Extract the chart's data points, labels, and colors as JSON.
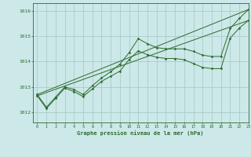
{
  "title": "Graphe pression niveau de la mer (hPa)",
  "bg_color": "#cce8e8",
  "grid_color": "#aacccc",
  "line_color": "#2d6a2d",
  "marker_color": "#2d6a2d",
  "xlim": [
    -0.5,
    23
  ],
  "ylim": [
    1011.6,
    1016.3
  ],
  "yticks": [
    1012,
    1013,
    1014,
    1015,
    1016
  ],
  "xticks": [
    0,
    1,
    2,
    3,
    4,
    5,
    6,
    7,
    8,
    9,
    10,
    11,
    12,
    13,
    14,
    15,
    16,
    17,
    18,
    19,
    20,
    21,
    22,
    23
  ],
  "series1": {
    "x": [
      0,
      1,
      2,
      3,
      4,
      5,
      6,
      7,
      8,
      9,
      10,
      11,
      12,
      13,
      14,
      15,
      16,
      17,
      18,
      19,
      20,
      21,
      22,
      23
    ],
    "y": [
      1012.7,
      1012.2,
      1012.6,
      1013.0,
      1012.9,
      1012.7,
      1013.05,
      1013.35,
      1013.6,
      1013.9,
      1014.35,
      1014.9,
      1014.7,
      1014.55,
      1014.5,
      1014.5,
      1014.5,
      1014.4,
      1014.25,
      1014.2,
      1014.2,
      1015.3,
      1015.7,
      1016.05
    ]
  },
  "series2": {
    "x": [
      0,
      1,
      2,
      3,
      4,
      5,
      6,
      7,
      8,
      9,
      10,
      11,
      12,
      13,
      14,
      15,
      16,
      17,
      18,
      19,
      20,
      21,
      22,
      23
    ],
    "y": [
      1012.65,
      1012.15,
      1012.55,
      1012.95,
      1012.82,
      1012.62,
      1012.92,
      1013.22,
      1013.42,
      1013.62,
      1014.08,
      1014.42,
      1014.27,
      1014.17,
      1014.12,
      1014.12,
      1014.07,
      1013.92,
      1013.77,
      1013.72,
      1013.72,
      1014.92,
      1015.32,
      1015.62
    ]
  },
  "series3": {
    "x": [
      0,
      23
    ],
    "y": [
      1012.7,
      1016.05
    ]
  },
  "series4": {
    "x": [
      0,
      23
    ],
    "y": [
      1012.65,
      1015.62
    ]
  }
}
